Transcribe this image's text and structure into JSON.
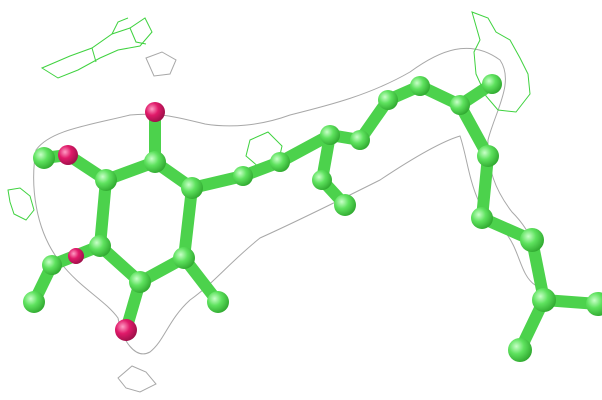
{
  "scene": {
    "background": "#ffffff",
    "colors": {
      "carbon": "#5ee25e",
      "carbon_shade": "#2fa82f",
      "oxygen": "#e01a6a",
      "oxygen_shade": "#9c0f48",
      "density_mesh": "#a8a8a8",
      "difference_mesh": "#3fd23f"
    },
    "render_style": "ball-and-stick",
    "mesh_style": "electron-density-wireframe"
  }
}
